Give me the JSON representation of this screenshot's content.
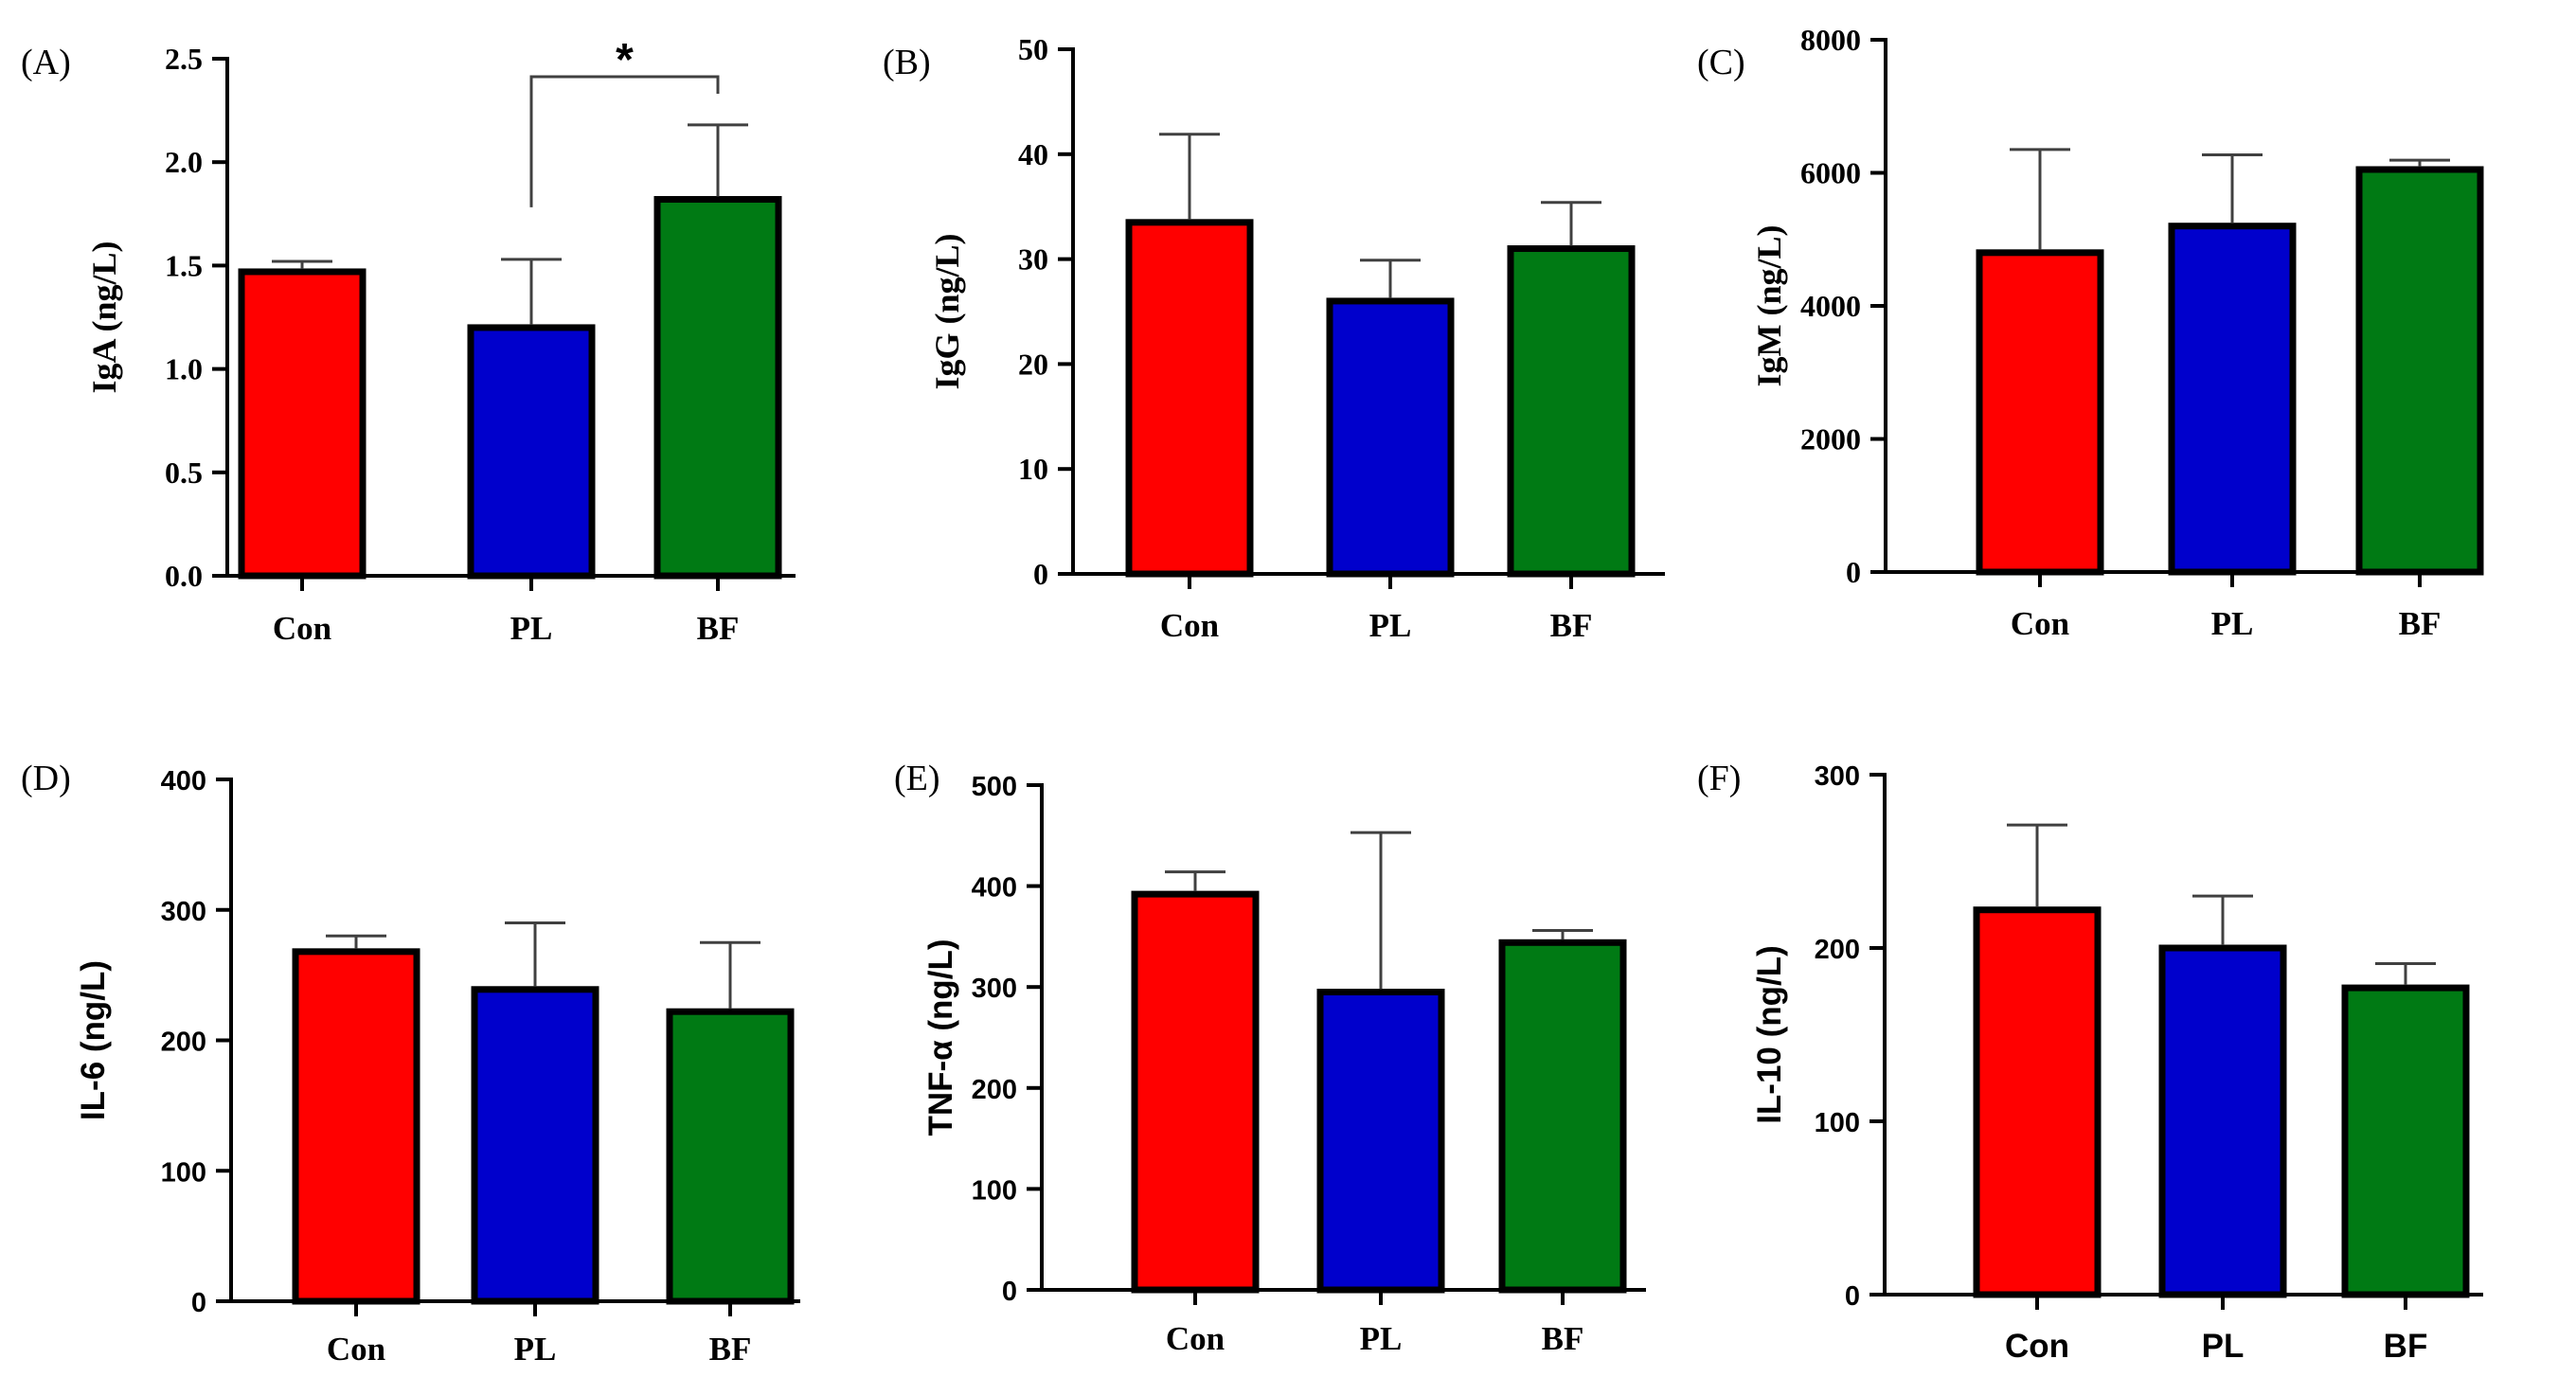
{
  "colors": {
    "Con": "#ff0000",
    "PL": "#0000cc",
    "BF": "#007a14",
    "axis": "#000000",
    "error_bar": "#404040"
  },
  "chart_data": [
    {
      "id": "A",
      "panel_label": "(A)",
      "type": "bar",
      "categories": [
        "Con",
        "PL",
        "BF"
      ],
      "values": [
        1.47,
        1.2,
        1.82
      ],
      "errors": [
        0.05,
        0.33,
        0.36
      ],
      "ylabel": "IgA (ng/L)",
      "ylim": [
        0,
        2.5
      ],
      "yticks": [
        0.0,
        0.5,
        1.0,
        1.5,
        2.0,
        2.5
      ],
      "ytick_labels": [
        "0.0",
        "0.5",
        "1.0",
        "1.5",
        "2.0",
        "2.5"
      ],
      "significance": [
        {
          "from": "PL",
          "to": "BF",
          "label": "*"
        }
      ],
      "font": "serif"
    },
    {
      "id": "B",
      "panel_label": "(B)",
      "type": "bar",
      "categories": [
        "Con",
        "PL",
        "BF"
      ],
      "values": [
        33.5,
        26.0,
        31.0
      ],
      "errors": [
        8.4,
        3.9,
        4.4
      ],
      "ylabel": "IgG (ng/L)",
      "ylim": [
        0,
        50
      ],
      "yticks": [
        0,
        10,
        20,
        30,
        40,
        50
      ],
      "ytick_labels": [
        "0",
        "10",
        "20",
        "30",
        "40",
        "50"
      ],
      "significance": [],
      "font": "serif"
    },
    {
      "id": "C",
      "panel_label": "(C)",
      "type": "bar",
      "categories": [
        "Con",
        "PL",
        "BF"
      ],
      "values": [
        4800,
        5200,
        6050
      ],
      "errors": [
        1550,
        1070,
        140
      ],
      "ylabel": "IgM (ng/L)",
      "ylim": [
        0,
        8000
      ],
      "yticks": [
        0,
        2000,
        4000,
        6000,
        8000
      ],
      "ytick_labels": [
        "0",
        "2000",
        "4000",
        "6000",
        "8000"
      ],
      "significance": [],
      "font": "serif"
    },
    {
      "id": "D",
      "panel_label": "(D)",
      "type": "bar",
      "categories": [
        "Con",
        "PL",
        "BF"
      ],
      "values": [
        268,
        239,
        222
      ],
      "errors": [
        12,
        51,
        53
      ],
      "ylabel": "IL-6 (ng/L)",
      "ylim": [
        0,
        400
      ],
      "yticks": [
        0,
        100,
        200,
        300,
        400
      ],
      "ytick_labels": [
        "0",
        "100",
        "200",
        "300",
        "400"
      ],
      "significance": [],
      "font": "mixed"
    },
    {
      "id": "E",
      "panel_label": "(E)",
      "type": "bar",
      "categories": [
        "Con",
        "PL",
        "BF"
      ],
      "values": [
        392,
        295,
        344
      ],
      "errors": [
        22,
        158,
        12
      ],
      "ylabel": "TNF-α (ng/L)",
      "ylim": [
        0,
        500
      ],
      "yticks": [
        0,
        100,
        200,
        300,
        400,
        500
      ],
      "ytick_labels": [
        "0",
        "100",
        "200",
        "300",
        "400",
        "500"
      ],
      "significance": [],
      "font": "mixed"
    },
    {
      "id": "F",
      "panel_label": "(F)",
      "type": "bar",
      "categories": [
        "Con",
        "PL",
        "BF"
      ],
      "values": [
        222,
        200,
        177
      ],
      "errors": [
        49,
        30,
        14
      ],
      "ylabel": "IL-10 (ng/L)",
      "ylim": [
        0,
        300
      ],
      "yticks": [
        0,
        100,
        200,
        300
      ],
      "ytick_labels": [
        "0",
        "100",
        "200",
        "300"
      ],
      "significance": [],
      "font": "sans"
    }
  ]
}
